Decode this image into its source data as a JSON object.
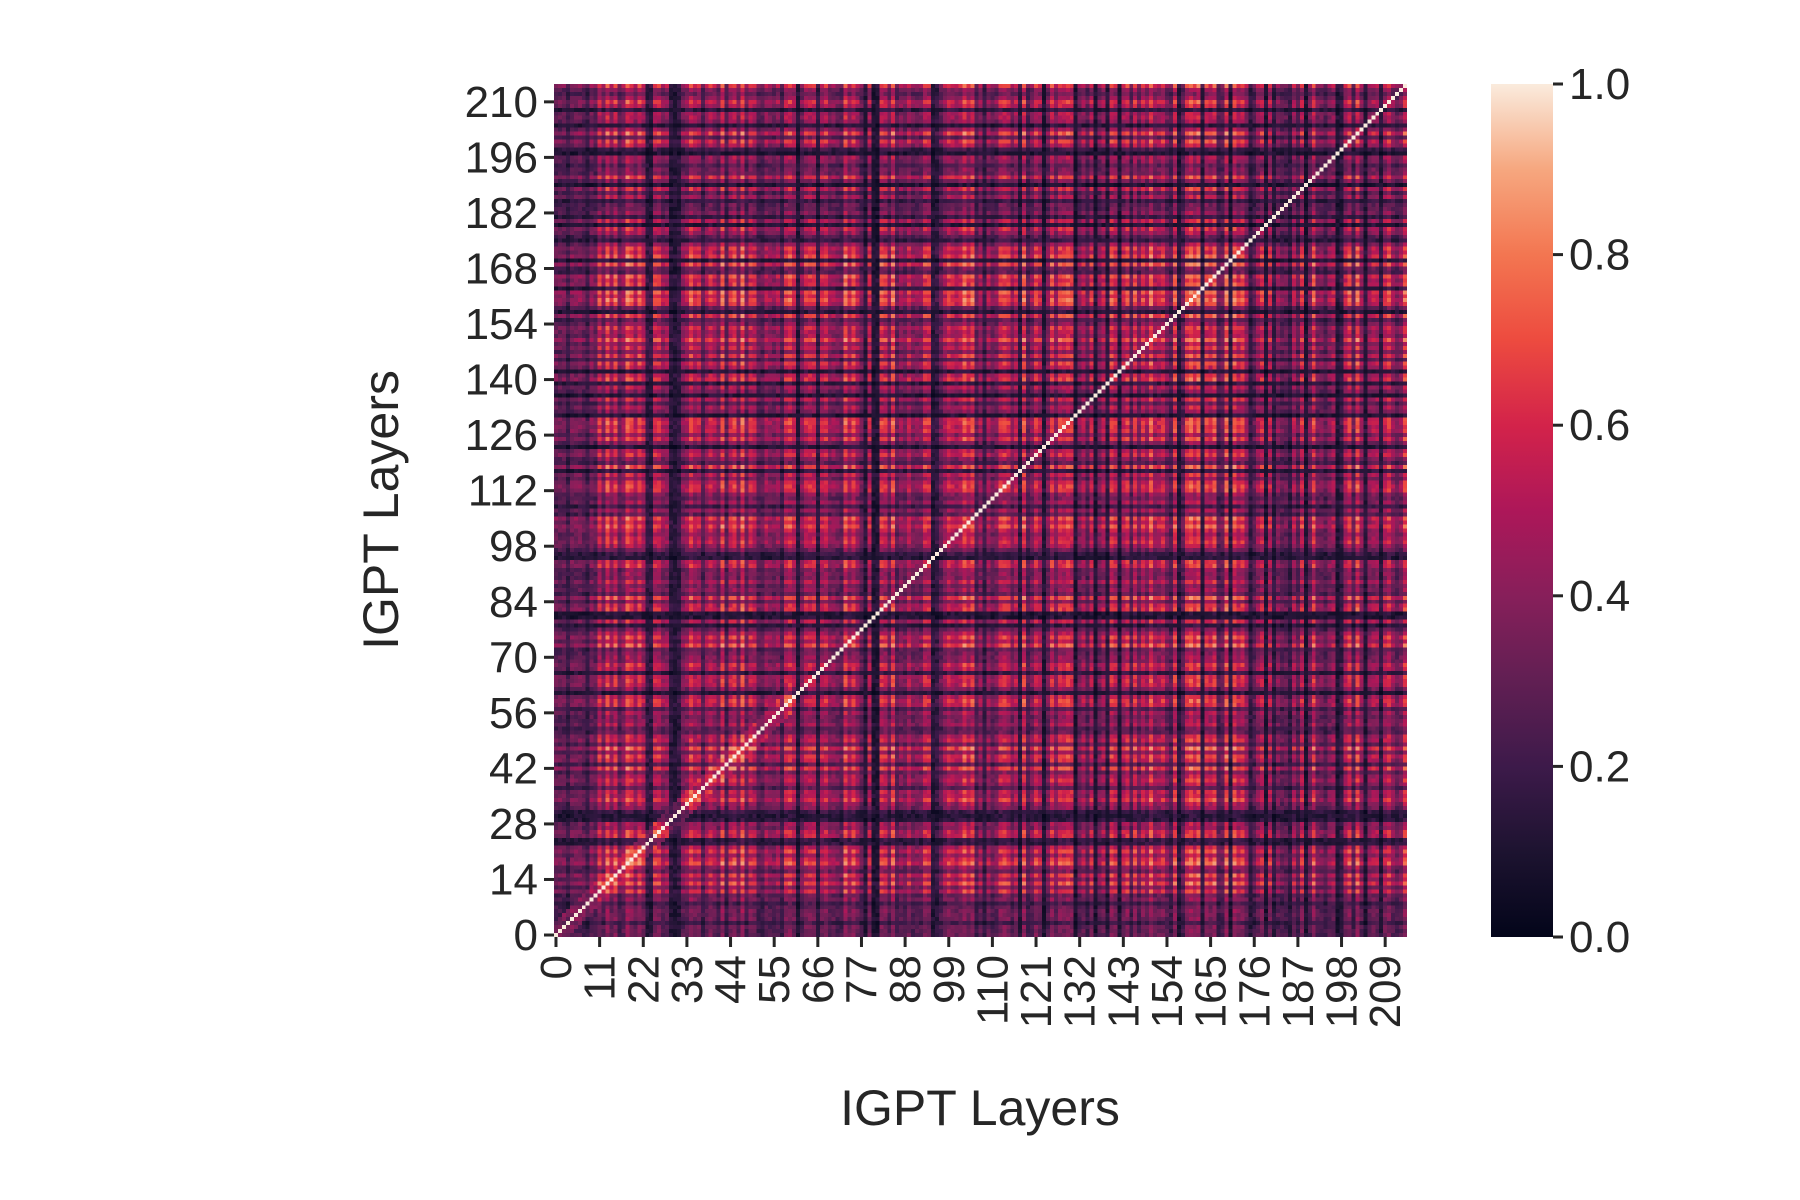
{
  "chart_data": {
    "type": "heatmap",
    "xlabel": "IGPT Layers",
    "ylabel": "IGPT Layers",
    "n": 215,
    "x_tick_labels": [
      "0",
      "11",
      "22",
      "33",
      "44",
      "55",
      "66",
      "77",
      "88",
      "99",
      "110",
      "121",
      "132",
      "143",
      "154",
      "165",
      "176",
      "187",
      "198",
      "209"
    ],
    "x_tick_values": [
      0,
      11,
      22,
      33,
      44,
      55,
      66,
      77,
      88,
      99,
      110,
      121,
      132,
      143,
      154,
      165,
      176,
      187,
      198,
      209
    ],
    "y_tick_labels": [
      "0",
      "14",
      "28",
      "42",
      "56",
      "70",
      "84",
      "98",
      "112",
      "126",
      "140",
      "154",
      "168",
      "182",
      "196",
      "210"
    ],
    "y_tick_values": [
      0,
      14,
      28,
      42,
      56,
      70,
      84,
      98,
      112,
      126,
      140,
      154,
      168,
      182,
      196,
      210
    ],
    "value_range": [
      0,
      1
    ],
    "diagonal_value": 1.0,
    "typical_offdiagonal_range": [
      0.05,
      0.8
    ],
    "colormap": "rocket",
    "colorbar": {
      "ticks": [
        0.0,
        0.2,
        0.4,
        0.6,
        0.8,
        1.0
      ],
      "tick_labels": [
        "0.0",
        "0.2",
        "0.4",
        "0.6",
        "0.8",
        "1.0"
      ]
    },
    "grid": false,
    "origin": "lower"
  }
}
